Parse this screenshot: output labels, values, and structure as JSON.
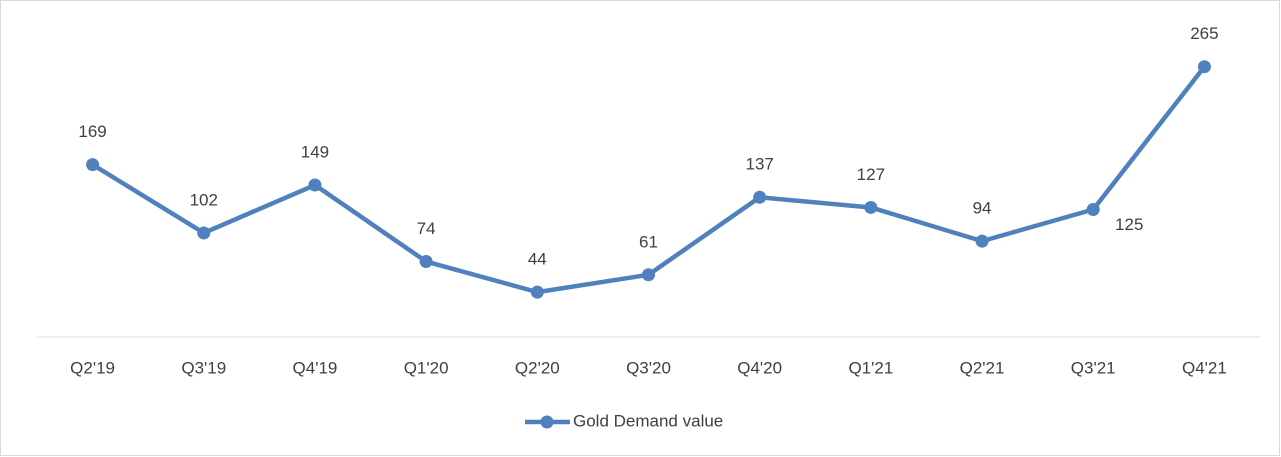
{
  "chart_data": {
    "type": "line",
    "categories": [
      "Q2'19",
      "Q3'19",
      "Q4'19",
      "Q1'20",
      "Q2'20",
      "Q3'20",
      "Q4'20",
      "Q1'21",
      "Q2'21",
      "Q3'21",
      "Q4'21"
    ],
    "series": [
      {
        "name": "Gold Demand value",
        "color": "#4f81bd",
        "values": [
          169,
          102,
          149,
          74,
          44,
          61,
          137,
          127,
          94,
          125,
          265
        ]
      }
    ],
    "ylim": [
      0,
      300
    ],
    "legend": "bottom"
  }
}
